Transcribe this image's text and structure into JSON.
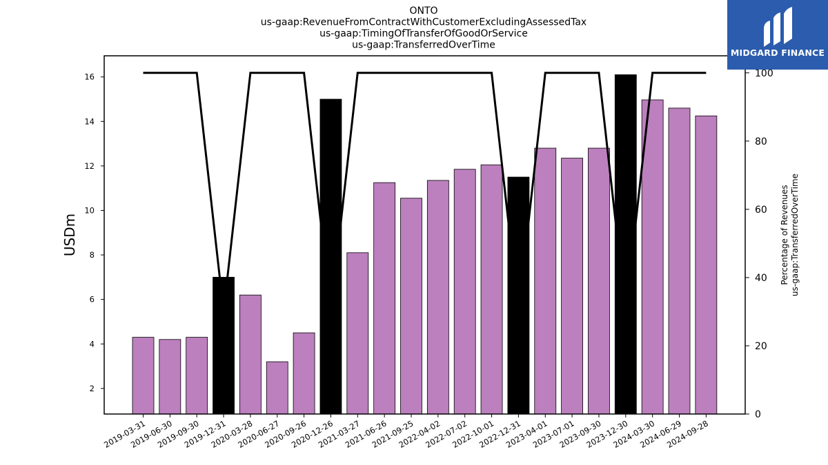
{
  "title_lines": [
    "ONTO",
    "us-gaap:RevenueFromContractWithCustomerExcludingAssessedTax",
    "us-gaap:TimingOfTransferOfGoodOrService",
    "us-gaap:TransferredOverTime"
  ],
  "logo": {
    "text": "MIDGARD FINANCE",
    "background": "#2b5cad"
  },
  "chart_data": {
    "type": "bar",
    "categories": [
      "2019-03-31",
      "2019-06-30",
      "2019-09-30",
      "2019-12-31",
      "2020-03-28",
      "2020-06-27",
      "2020-09-26",
      "2020-12-26",
      "2021-03-27",
      "2021-06-26",
      "2021-09-25",
      "2022-04-02",
      "2022-07-02",
      "2022-10-01",
      "2022-12-31",
      "2023-04-01",
      "2023-07-01",
      "2023-09-30",
      "2023-12-30",
      "2024-03-30",
      "2024-06-29",
      "2024-09-28"
    ],
    "values": [
      4.3,
      4.2,
      4.3,
      7.0,
      6.2,
      3.2,
      4.5,
      15.0,
      8.1,
      11.25,
      10.55,
      11.35,
      11.85,
      12.05,
      11.5,
      12.8,
      12.35,
      12.8,
      16.1,
      14.97,
      14.6,
      14.25
    ],
    "highlighted": [
      false,
      false,
      false,
      true,
      false,
      false,
      false,
      true,
      false,
      false,
      false,
      false,
      false,
      false,
      true,
      false,
      false,
      false,
      true,
      false,
      false,
      false
    ],
    "line_values": [
      100,
      100,
      100,
      30,
      100,
      100,
      100,
      30,
      100,
      100,
      100,
      100,
      100,
      100,
      30,
      100,
      100,
      100,
      30,
      100,
      100,
      100
    ],
    "ylabel": "USDm",
    "y2label_lines": [
      "Percentage of Revenues",
      "us-gaap:TransferredOverTime"
    ],
    "ylim": [
      0.85,
      16.95
    ],
    "y_ticks": [
      2,
      4,
      6,
      8,
      10,
      12,
      14,
      16
    ],
    "y2lim": [
      0,
      105
    ],
    "y2_ticks": [
      0,
      20,
      40,
      60,
      80,
      100
    ],
    "colors": {
      "bar": "#bb80bd",
      "highlight": "#000000",
      "line": "#000000"
    },
    "grid": false,
    "legend": "none"
  }
}
